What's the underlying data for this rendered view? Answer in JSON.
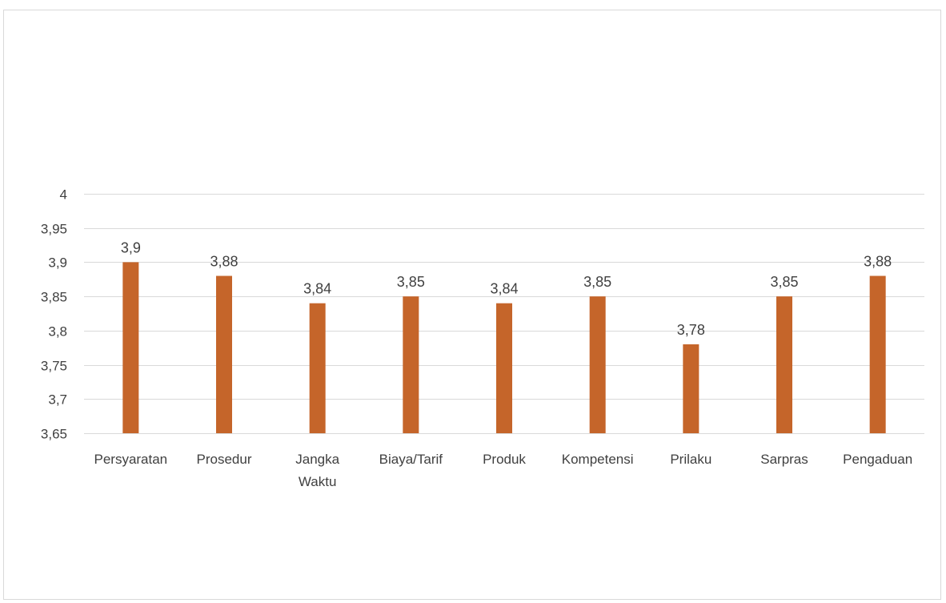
{
  "chart_data": {
    "type": "bar",
    "title": "",
    "xlabel": "",
    "ylabel": "",
    "categories": [
      "Persyaratan",
      "Prosedur",
      "Jangka Waktu",
      "Biaya/Tarif",
      "Produk",
      "Kompetensi",
      "Prilaku",
      "Sarpras",
      "Pengaduan"
    ],
    "category_lines": [
      [
        "Persyaratan"
      ],
      [
        "Prosedur"
      ],
      [
        "Jangka",
        "Waktu"
      ],
      [
        "Biaya/Tarif"
      ],
      [
        "Produk"
      ],
      [
        "Kompetensi"
      ],
      [
        "Prilaku"
      ],
      [
        "Sarpras"
      ],
      [
        "Pengaduan"
      ]
    ],
    "values": [
      3.9,
      3.88,
      3.84,
      3.85,
      3.84,
      3.85,
      3.78,
      3.85,
      3.88
    ],
    "data_labels": [
      "3,9",
      "3,88",
      "3,84",
      "3,85",
      "3,84",
      "3,85",
      "3,78",
      "3,85",
      "3,88"
    ],
    "ylim": [
      3.65,
      4.0
    ],
    "yticks": [
      3.65,
      3.7,
      3.75,
      3.8,
      3.85,
      3.9,
      3.95,
      4.0
    ],
    "ytick_labels": [
      "3,65",
      "3,7",
      "3,75",
      "3,8",
      "3,85",
      "3,9",
      "3,95",
      "4"
    ],
    "grid": true,
    "legend": "none",
    "colors": {
      "bar": "#C5652A",
      "grid": "#D9D9D9",
      "text": "#404040",
      "frame": "#D9D9D9"
    }
  }
}
